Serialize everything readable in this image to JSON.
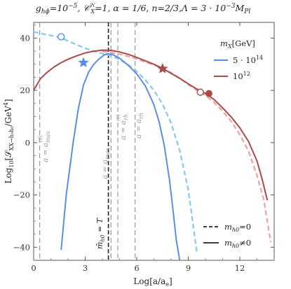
{
  "chart_data": {
    "type": "line",
    "title": "g_{hϕ}=10^{-5}, C_X^H=1, α=1/6, n=2/3, Λ=3·10^{-3}M_Pl",
    "xlabel": "Log[a/a_e]",
    "ylabel": "Log10[S_{XX→h0h0}/GeV^4]",
    "xlim": [
      0,
      14
    ],
    "ylim": [
      -45,
      46
    ],
    "xticks": [
      "0",
      "3",
      "6",
      "9",
      "12"
    ],
    "yticks": [
      "-40",
      "-20",
      "0",
      "20",
      "40"
    ],
    "legend_title": "m_X [GeV]",
    "legend_position": "top-right",
    "legend_style_position": "bottom-right",
    "style_legend": [
      {
        "label": "m_{h0}=0",
        "dash": "dashed"
      },
      {
        "label": "m_{h0}≠0",
        "dash": "solid"
      }
    ],
    "vlines": [
      {
        "x": 0.35,
        "label": "a = a_max^(0)",
        "style": "gray-dashed"
      },
      {
        "x": 4.5,
        "label": "a = a_max",
        "style": "gray-dashed"
      },
      {
        "x": 4.9,
        "label": "a = a_rh^(0)",
        "style": "gray-dashed"
      },
      {
        "x": 5.9,
        "label": "a = a_rh",
        "style": "gray-dashed"
      },
      {
        "x": 4.35,
        "label": "m̃_h0 = T",
        "style": "black-dashed"
      }
    ],
    "series": [
      {
        "name": "5·10^14",
        "color": "#5a8ee6",
        "dash_color": "#86c8ee",
        "solid": {
          "x": [
            1.6,
            1.9,
            2.3,
            2.6,
            2.9,
            3.2,
            3.5,
            3.8,
            4.1,
            4.3,
            4.6,
            5.0,
            5.5,
            6.0,
            6.5,
            7.0,
            7.3,
            7.6,
            7.9,
            8.1,
            8.3,
            8.5
          ],
          "y": [
            -41,
            -20,
            0,
            13,
            22,
            27,
            30,
            32,
            33.5,
            34,
            33.7,
            32.3,
            29.6,
            26.3,
            21.7,
            14.5,
            8,
            -1,
            -14,
            -25,
            -37,
            -45
          ]
        },
        "dashed": {
          "x": [
            0,
            0.3,
            0.6,
            1.0,
            1.5,
            2.0,
            2.5,
            3.0,
            3.5,
            4.0,
            4.5,
            5.0,
            5.5,
            6.0,
            6.5,
            7.0,
            7.5,
            8.0,
            8.5,
            9.0,
            9.5
          ],
          "y": [
            42.3,
            42,
            41.5,
            41,
            40.3,
            38.9,
            37.5,
            36.1,
            35,
            34.1,
            33.2,
            31.8,
            29.8,
            27.3,
            24,
            20,
            14.7,
            7.5,
            -3,
            -18,
            -42
          ]
        },
        "markers": [
          {
            "x": 2.9,
            "y": 30.6,
            "kind": "star"
          },
          {
            "x": 1.6,
            "y": 40.5,
            "kind": "open-circle"
          }
        ]
      },
      {
        "name": "10^12",
        "color": "#a84a48",
        "dash_color": "#f0a0a0",
        "solid": {
          "x": [
            0,
            0.4,
            0.8,
            1.2,
            1.6,
            2.0,
            2.5,
            3.0,
            3.5,
            4.0,
            4.5,
            5.0,
            5.5,
            6.0,
            6.5,
            7.0,
            7.5,
            8.0,
            8.5,
            9.0,
            9.5,
            10.0,
            10.5,
            11.0,
            11.5,
            12.0,
            12.5,
            13.0,
            13.3,
            13.6
          ],
          "y": [
            20,
            24.5,
            27,
            29,
            30.6,
            31.9,
            33.2,
            34.3,
            35,
            35.4,
            35.3,
            34.7,
            33.8,
            32.6,
            31.3,
            30,
            28.4,
            26.5,
            24.6,
            22.5,
            20.5,
            18.8,
            16.5,
            13.3,
            9.8,
            5.7,
            0.5,
            -7,
            -14,
            -22
          ]
        },
        "dashed": {
          "x": [
            4.0,
            4.5,
            5.0,
            5.5,
            6.0,
            6.5,
            7.0,
            7.5,
            8.0,
            8.5,
            9.0,
            9.5,
            10.0,
            10.5,
            11.0,
            11.5,
            12.0,
            12.5,
            13.0,
            13.4,
            13.8
          ],
          "y": [
            34.9,
            34.5,
            33.9,
            33,
            32,
            30.8,
            29.7,
            28.5,
            26.8,
            24.7,
            22.2,
            20,
            18,
            15.4,
            12.1,
            8.1,
            3.1,
            -3.2,
            -12.5,
            -22,
            -38
          ]
        },
        "markers": [
          {
            "x": 7.5,
            "y": 28.3,
            "kind": "star"
          },
          {
            "x": 10.2,
            "y": 18.8,
            "kind": "filled-circle"
          },
          {
            "x": 9.7,
            "y": 19.3,
            "kind": "open-circle"
          }
        ]
      }
    ]
  },
  "text": {
    "title": "g_{hϕ}=10^{-5}, 𝒞ᵡᴴ=1, α=1/6, n=2/3, Λ=3·10^{-3}M_Pl",
    "ylabel": "Log10[S_XX→h0h0 / GeV4]",
    "xlabel": "Log[a/a_e]",
    "vlabels": [
      "a = a_max^(0)",
      "a = a_max",
      "a = a_rh^(0)",
      "a = a_rh",
      "m̃_h0 = T"
    ],
    "legend_title": "m_X [GeV]",
    "legend_entries": [
      "5·10^14",
      "10^12"
    ],
    "style_entries": [
      "m_h0 = 0",
      "m_h0 ≠ 0"
    ]
  }
}
